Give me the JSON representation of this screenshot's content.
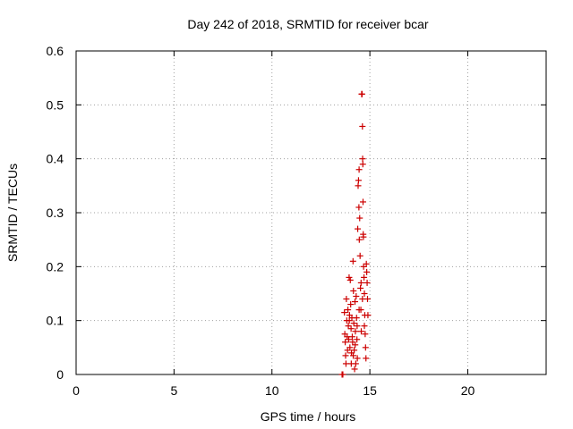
{
  "chart_data": {
    "type": "scatter",
    "title": "Day 242 of 2018, SRMTID for receiver bcar",
    "xlabel": "GPS time / hours",
    "ylabel": "SRMTID / TECUs",
    "xlim": [
      0,
      24
    ],
    "ylim": [
      0,
      0.6
    ],
    "xticks": [
      0,
      5,
      10,
      15,
      20
    ],
    "xtick_labels": [
      "0",
      "5",
      "10",
      "15",
      "20"
    ],
    "yticks": [
      0,
      0.1,
      0.2,
      0.3,
      0.4,
      0.5,
      0.6
    ],
    "ytick_labels": [
      "0",
      "0.1",
      "0.2",
      "0.3",
      "0.4",
      "0.5",
      "0.6"
    ],
    "grid": true,
    "marker": "+",
    "color": "#cc0000",
    "series": [
      {
        "name": "SRMTID",
        "points": [
          [
            13.58,
            0.0
          ],
          [
            13.62,
            0.0
          ],
          [
            13.7,
            0.115
          ],
          [
            13.72,
            0.075
          ],
          [
            13.74,
            0.06
          ],
          [
            13.76,
            0.035
          ],
          [
            13.78,
            0.02
          ],
          [
            13.8,
            0.14
          ],
          [
            13.82,
            0.1
          ],
          [
            13.84,
            0.07
          ],
          [
            13.86,
            0.045
          ],
          [
            13.88,
            0.12
          ],
          [
            13.9,
            0.09
          ],
          [
            13.92,
            0.065
          ],
          [
            13.94,
            0.18
          ],
          [
            13.96,
            0.11
          ],
          [
            13.98,
            0.05
          ],
          [
            14.0,
            0.175
          ],
          [
            14.02,
            0.13
          ],
          [
            14.04,
            0.085
          ],
          [
            14.06,
            0.04
          ],
          [
            14.08,
            0.105
          ],
          [
            14.1,
            0.07
          ],
          [
            14.12,
            0.06
          ],
          [
            14.14,
            0.21
          ],
          [
            14.16,
            0.155
          ],
          [
            14.18,
            0.095
          ],
          [
            14.2,
            0.045
          ],
          [
            14.22,
            0.01
          ],
          [
            14.24,
            0.135
          ],
          [
            14.26,
            0.08
          ],
          [
            14.28,
            0.02
          ],
          [
            14.3,
            0.145
          ],
          [
            14.32,
            0.105
          ],
          [
            14.34,
            0.065
          ],
          [
            14.36,
            0.03
          ],
          [
            14.38,
            0.27
          ],
          [
            14.4,
            0.35
          ],
          [
            14.42,
            0.36
          ],
          [
            14.44,
            0.31
          ],
          [
            14.45,
            0.38
          ],
          [
            14.46,
            0.25
          ],
          [
            14.48,
            0.29
          ],
          [
            14.5,
            0.22
          ],
          [
            14.52,
            0.16
          ],
          [
            14.54,
            0.12
          ],
          [
            14.56,
            0.08
          ],
          [
            14.58,
            0.52
          ],
          [
            14.6,
            0.52
          ],
          [
            14.62,
            0.46
          ],
          [
            14.63,
            0.4
          ],
          [
            14.64,
            0.39
          ],
          [
            14.65,
            0.32
          ],
          [
            14.66,
            0.26
          ],
          [
            14.67,
            0.255
          ],
          [
            14.68,
            0.2
          ],
          [
            14.7,
            0.18
          ],
          [
            14.72,
            0.15
          ],
          [
            14.74,
            0.11
          ],
          [
            14.76,
            0.075
          ],
          [
            14.78,
            0.05
          ],
          [
            14.8,
            0.03
          ],
          [
            14.82,
            0.205
          ],
          [
            14.84,
            0.19
          ],
          [
            14.86,
            0.17
          ],
          [
            14.88,
            0.14
          ],
          [
            14.9,
            0.11
          ],
          [
            14.05,
            0.02
          ],
          [
            14.15,
            0.035
          ],
          [
            14.25,
            0.055
          ],
          [
            14.35,
            0.09
          ],
          [
            14.55,
            0.17
          ],
          [
            14.62,
            0.14
          ],
          [
            14.72,
            0.09
          ],
          [
            13.95,
            0.1
          ],
          [
            14.45,
            0.12
          ]
        ]
      }
    ]
  }
}
